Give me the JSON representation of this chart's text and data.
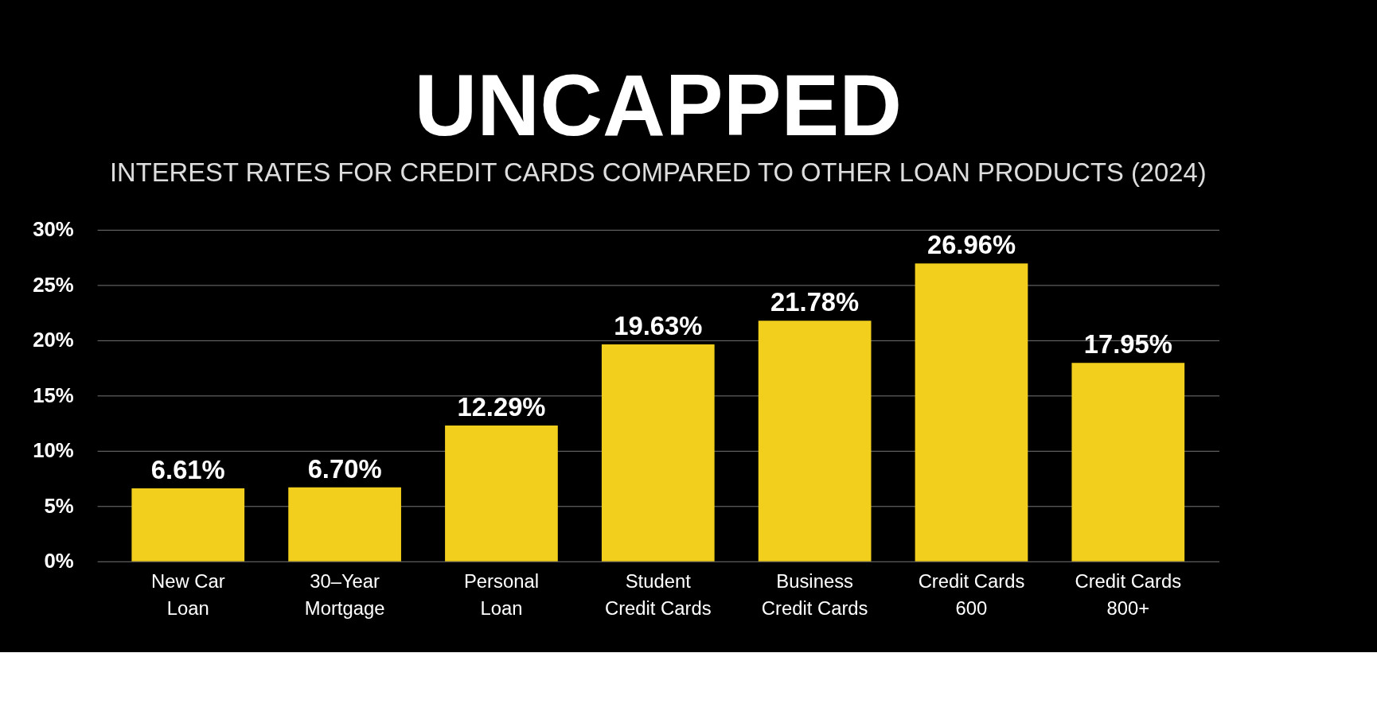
{
  "chart_data": {
    "type": "bar",
    "title": "UNCAPPED",
    "subtitle": "INTEREST RATES FOR CREDIT CARDS COMPARED TO OTHER LOAN PRODUCTS (2024)",
    "categories": [
      "New Car\nLoan",
      "30–Year\nMortgage",
      "Personal\nLoan",
      "Student\nCredit Cards",
      "Business\nCredit Cards",
      "Credit Cards\n600",
      "Credit Cards\n800+"
    ],
    "values": [
      6.61,
      6.7,
      12.29,
      19.63,
      21.78,
      26.96,
      17.95
    ],
    "value_labels": [
      "6.61%",
      "6.70%",
      "12.29%",
      "19.63%",
      "21.78%",
      "26.96%",
      "17.95%"
    ],
    "color": "#f2cf1c",
    "ylim": [
      0,
      30
    ],
    "yticks": [
      {
        "value": 0,
        "label": "0%"
      },
      {
        "value": 5,
        "label": "5%"
      },
      {
        "value": 10,
        "label": "10%"
      },
      {
        "value": 15,
        "label": "15%"
      },
      {
        "value": 20,
        "label": "20%"
      },
      {
        "value": 25,
        "label": "25%"
      },
      {
        "value": 30,
        "label": "30%"
      }
    ],
    "grid": "y"
  }
}
